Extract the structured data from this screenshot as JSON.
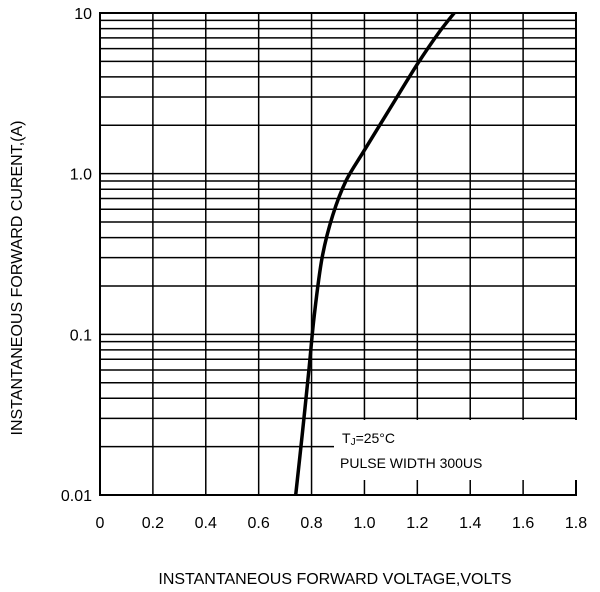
{
  "chart_data": {
    "type": "line",
    "xlabel": "INSTANTANEOUS FORWARD VOLTAGE,VOLTS",
    "ylabel": "INSTANTANEOUS FORWARD  CURENT,(A)",
    "xlim": [
      0,
      1.8
    ],
    "ylim": [
      0.01,
      10
    ],
    "yscale": "log",
    "grid": true,
    "x_ticks": [
      "0",
      "0.2",
      "0.4",
      "0.6",
      "0.8",
      "1.0",
      "1.2",
      "1.4",
      "1.6",
      "1.8"
    ],
    "y_ticks": [
      "0.01",
      "0.1",
      "1.0",
      "10"
    ],
    "annotation": {
      "line1_main": "T",
      "line1_sub": "J",
      "line1_rest": "=25°C",
      "line2": "PULSE WIDTH 300US"
    },
    "series": [
      {
        "color": "#000000",
        "x": [
          0.74,
          0.765,
          0.79,
          0.81,
          0.84,
          0.88,
          0.93,
          1.0,
          1.1,
          1.2,
          1.28,
          1.35
        ],
        "y": [
          0.01,
          0.024,
          0.06,
          0.13,
          0.3,
          0.55,
          0.9,
          1.4,
          2.6,
          4.8,
          7.5,
          10.5
        ]
      }
    ]
  }
}
